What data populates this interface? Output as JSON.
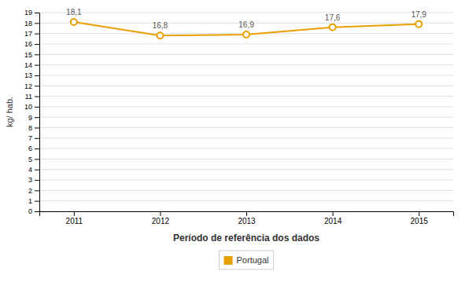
{
  "chart_data": {
    "type": "line",
    "x": [
      2011,
      2012,
      2013,
      2014,
      2015
    ],
    "series": [
      {
        "name": "Portugal",
        "color": "#E8A000",
        "marker": "circle",
        "values": [
          18.1,
          16.8,
          16.9,
          17.6,
          17.9
        ],
        "value_labels": [
          "18,1",
          "16,8",
          "16,9",
          "17,6",
          "17,9"
        ]
      }
    ],
    "data_labels": true,
    "xlabel": "Período de referência dos dados",
    "ylabel": "kg/ hab.",
    "xlim": [
      2010.6,
      2015.4
    ],
    "xticks": [
      2011,
      2012,
      2013,
      2014,
      2015
    ],
    "ylim": [
      0,
      19
    ],
    "yticks": [
      0,
      1,
      2,
      3,
      4,
      5,
      6,
      7,
      8,
      9,
      10,
      11,
      12,
      13,
      14,
      15,
      16,
      17,
      18,
      19
    ],
    "grid": "y",
    "legend": "bottom"
  }
}
